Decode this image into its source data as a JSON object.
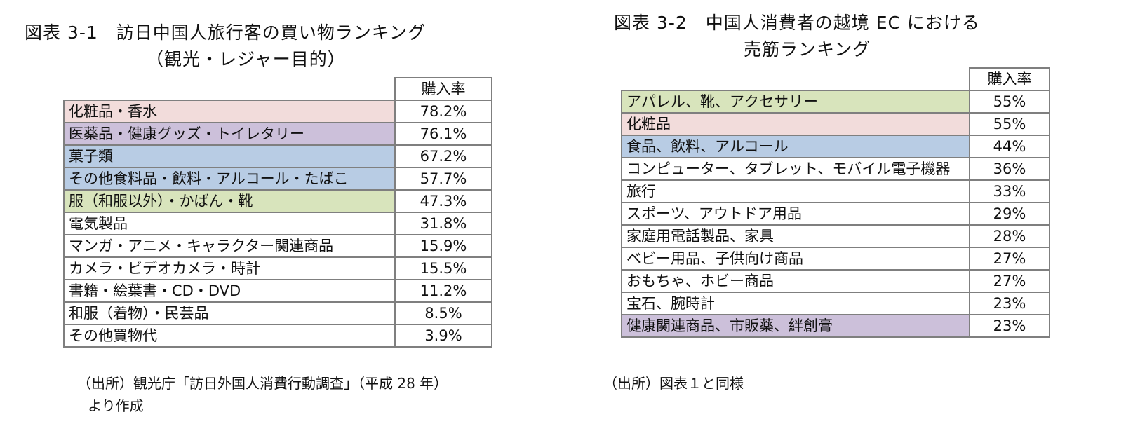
{
  "left": {
    "title_line1": "図表 3-1　訪日中国人旅行客の買い物ランキング",
    "title_line2": "（観光・レジャー目的）",
    "header": "購入率",
    "rows": [
      {
        "item": "化粧品・香水",
        "rate": "78.2%",
        "bg": "#f2dcdb"
      },
      {
        "item": "医薬品・健康グッズ・トイレタリー",
        "rate": "76.1%",
        "bg": "#ccc0da"
      },
      {
        "item": "菓子類",
        "rate": "67.2%",
        "bg": "#b8cce4"
      },
      {
        "item": "その他食料品・飲料・アルコール・たばこ",
        "rate": "57.7%",
        "bg": "#b8cce4"
      },
      {
        "item": "服（和服以外）・かばん・靴",
        "rate": "47.3%",
        "bg": "#d8e4bc"
      },
      {
        "item": "電気製品",
        "rate": "31.8%",
        "bg": "#ffffff"
      },
      {
        "item": "マンガ・アニメ・キャラクター関連商品",
        "rate": "15.9%",
        "bg": "#ffffff"
      },
      {
        "item": "カメラ・ビデオカメラ・時計",
        "rate": "15.5%",
        "bg": "#ffffff"
      },
      {
        "item": "書籍・絵葉書・CD・DVD",
        "rate": "11.2%",
        "bg": "#ffffff"
      },
      {
        "item": "和服（着物）・民芸品",
        "rate": "8.5%",
        "bg": "#ffffff"
      },
      {
        "item": "その他買物代",
        "rate": "3.9%",
        "bg": "#ffffff"
      }
    ],
    "source_line1": "（出所）観光庁「訪日外国人消費行動調査」（平成 28 年）",
    "source_line2": "より作成"
  },
  "right": {
    "title_line1": "図表 3-2　中国人消費者の越境 EC における",
    "title_line2": "売筋ランキング",
    "header": "購入率",
    "rows": [
      {
        "item": "アパレル、靴、アクセサリー",
        "rate": "55%",
        "bg": "#d8e4bc"
      },
      {
        "item": "化粧品",
        "rate": "55%",
        "bg": "#f2dcdb"
      },
      {
        "item": "食品、飲料、アルコール",
        "rate": "44%",
        "bg": "#b8cce4"
      },
      {
        "item": "コンピューター、タブレット、モバイル電子機器",
        "rate": "36%",
        "bg": "#ffffff"
      },
      {
        "item": "旅行",
        "rate": "33%",
        "bg": "#ffffff"
      },
      {
        "item": "スポーツ、アウトドア用品",
        "rate": "29%",
        "bg": "#ffffff"
      },
      {
        "item": "家庭用電話製品、家具",
        "rate": "28%",
        "bg": "#ffffff"
      },
      {
        "item": "ベビー用品、子供向け商品",
        "rate": "27%",
        "bg": "#ffffff"
      },
      {
        "item": "おもちゃ、ホビー商品",
        "rate": "27%",
        "bg": "#ffffff"
      },
      {
        "item": "宝石、腕時計",
        "rate": "23%",
        "bg": "#ffffff"
      },
      {
        "item": "健康関連商品、市販薬、絆創膏",
        "rate": "23%",
        "bg": "#ccc0da"
      }
    ],
    "source": "（出所）図表１と同様"
  }
}
